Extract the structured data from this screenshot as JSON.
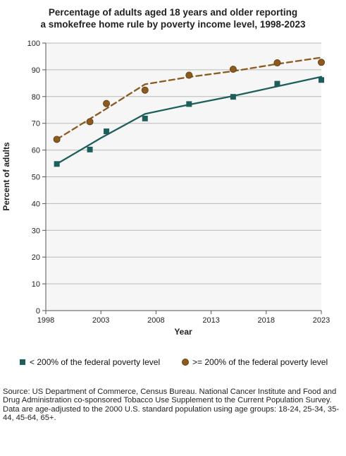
{
  "chart_data": {
    "type": "line",
    "title_lines": [
      "Percentage of adults aged 18 years and older reporting",
      "a smokefree home rule by poverty income level, 1998-2023"
    ],
    "xlabel": "Year",
    "ylabel": "Percent of adults",
    "xlim": [
      1998,
      2023
    ],
    "ylim": [
      0,
      100
    ],
    "x_ticks": [
      1998,
      2003,
      2008,
      2013,
      2018,
      2023
    ],
    "y_ticks": [
      0,
      10,
      20,
      30,
      40,
      50,
      60,
      70,
      80,
      90,
      100
    ],
    "grid": true,
    "legend_position": "bottom",
    "series": [
      {
        "name": "< 200% of the federal poverty level",
        "color": "#1f5f5b",
        "marker": "square",
        "line_style": "solid",
        "points": [
          {
            "x": 1999,
            "y": 54.8
          },
          {
            "x": 2002,
            "y": 60.2
          },
          {
            "x": 2003.5,
            "y": 67.0
          },
          {
            "x": 2007,
            "y": 71.8
          },
          {
            "x": 2011,
            "y": 77.2
          },
          {
            "x": 2015,
            "y": 79.9
          },
          {
            "x": 2019,
            "y": 84.8
          },
          {
            "x": 2023,
            "y": 86.2
          }
        ],
        "trend": [
          {
            "x": 1999,
            "y": 54.8
          },
          {
            "x": 2003,
            "y": 64.5
          },
          {
            "x": 2007,
            "y": 73.5
          },
          {
            "x": 2011,
            "y": 77.0
          },
          {
            "x": 2015,
            "y": 80.2
          },
          {
            "x": 2019,
            "y": 83.8
          },
          {
            "x": 2023,
            "y": 87.4
          }
        ]
      },
      {
        "name": ">= 200% of the federal poverty level",
        "color": "#8b5a1e",
        "marker": "circle",
        "line_style": "dashed",
        "points": [
          {
            "x": 1999,
            "y": 64.0
          },
          {
            "x": 2002,
            "y": 70.6
          },
          {
            "x": 2003.5,
            "y": 77.4
          },
          {
            "x": 2007,
            "y": 82.4
          },
          {
            "x": 2011,
            "y": 88.0
          },
          {
            "x": 2015,
            "y": 90.2
          },
          {
            "x": 2019,
            "y": 92.6
          },
          {
            "x": 2023,
            "y": 92.8
          }
        ],
        "trend": [
          {
            "x": 1999,
            "y": 64.0
          },
          {
            "x": 2003,
            "y": 74.2
          },
          {
            "x": 2007,
            "y": 84.6
          },
          {
            "x": 2011,
            "y": 87.3
          },
          {
            "x": 2015,
            "y": 89.5
          },
          {
            "x": 2019,
            "y": 92.2
          },
          {
            "x": 2023,
            "y": 94.6
          }
        ]
      }
    ]
  },
  "source": {
    "line1": "Source: US Department of Commerce, Census Bureau. National Cancer Institute and Food and Drug Administration co-sponsored Tobacco Use Supplement to the Current Population Survey.",
    "line2": "Data are age-adjusted to the 2000 U.S. standard population using age groups: 18-24, 25-34, 35-44, 45-64, 65+."
  }
}
